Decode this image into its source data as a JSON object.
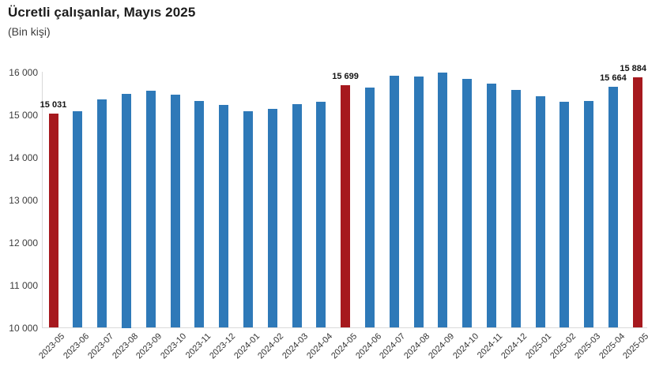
{
  "header": {
    "title": "Ücretli çalışanlar, Mayıs 2025",
    "subtitle": "(Bin kişi)"
  },
  "chart_data": {
    "type": "bar",
    "title": "Ücretli çalışanlar, Mayıs 2025",
    "subtitle": "(Bin kişi)",
    "xlabel": "",
    "ylabel": "Bin kişi",
    "ylim": [
      10000,
      16000
    ],
    "grid": false,
    "legend": "none",
    "categories": [
      "2023-05",
      "2023-06",
      "2023-07",
      "2023-08",
      "2023-09",
      "2023-10",
      "2023-11",
      "2023-12",
      "2024-01",
      "2024-02",
      "2024-03",
      "2024-04",
      "2024-05",
      "2024-06",
      "2024-07",
      "2024-08",
      "2024-09",
      "2024-10",
      "2024-11",
      "2024-12",
      "2025-01",
      "2025-02",
      "2025-03",
      "2025-04",
      "2025-05"
    ],
    "values": [
      15031,
      15090,
      15360,
      15500,
      15570,
      15470,
      15320,
      15240,
      15080,
      15130,
      15245,
      15300,
      15699,
      15630,
      15920,
      15900,
      15985,
      15850,
      15730,
      15580,
      15430,
      15300,
      15330,
      15664,
      15884
    ],
    "point_labels": [
      "15 031",
      "",
      "",
      "",
      "",
      "",
      "",
      "",
      "",
      "",
      "",
      "",
      "15 699",
      "",
      "",
      "",
      "",
      "",
      "",
      "",
      "",
      "",
      "",
      "15 664",
      "15 884"
    ],
    "highlight_indexes": [
      0,
      12,
      24
    ],
    "yticks": [
      {
        "label": "16 000",
        "value": 16000
      },
      {
        "label": "15 000",
        "value": 15000
      },
      {
        "label": "14 000",
        "value": 14000
      },
      {
        "label": "13 000",
        "value": 13000
      },
      {
        "label": "12 000",
        "value": 12000
      },
      {
        "label": "11 000",
        "value": 11000
      },
      {
        "label": "10 000",
        "value": 10000
      }
    ],
    "colors": {
      "bar": "#2E79B8",
      "highlight": "#A6191E",
      "axis": "#D9D9D9",
      "label_text": "#141414"
    }
  }
}
